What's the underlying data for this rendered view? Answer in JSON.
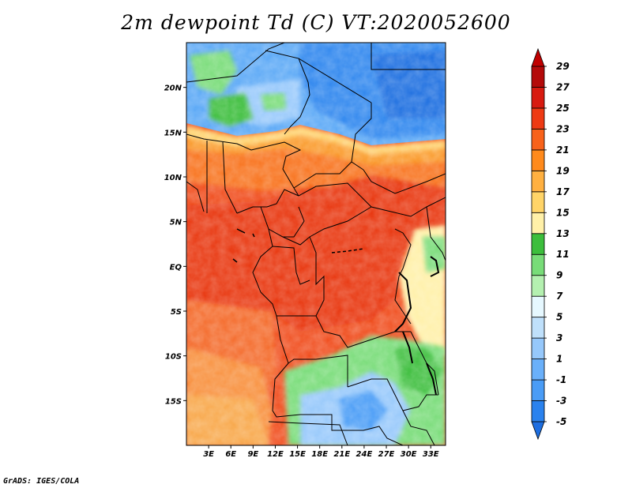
{
  "title": "2m dewpoint Td (C) VT:2020052600",
  "credit": "GrADS: IGES/COLA",
  "map": {
    "lat_labels": [
      {
        "label": "20N",
        "lat": 20
      },
      {
        "label": "15N",
        "lat": 15
      },
      {
        "label": "10N",
        "lat": 10
      },
      {
        "label": "5N",
        "lat": 5
      },
      {
        "label": "EQ",
        "lat": 0
      },
      {
        "label": "5S",
        "lat": -5
      },
      {
        "label": "10S",
        "lat": -10
      },
      {
        "label": "15S",
        "lat": -15
      }
    ],
    "lon_labels": [
      {
        "label": "3E",
        "lon": 3
      },
      {
        "label": "6E",
        "lon": 6
      },
      {
        "label": "9E",
        "lon": 9
      },
      {
        "label": "12E",
        "lon": 12
      },
      {
        "label": "15E",
        "lon": 15
      },
      {
        "label": "18E",
        "lon": 18
      },
      {
        "label": "21E",
        "lon": 21
      },
      {
        "label": "24E",
        "lon": 24
      },
      {
        "label": "27E",
        "lon": 27
      },
      {
        "label": "30E",
        "lon": 30
      },
      {
        "label": "33E",
        "lon": 33
      }
    ],
    "lon_range": [
      0,
      35
    ],
    "lat_range": [
      -20,
      25
    ]
  },
  "colorbar": {
    "levels": [
      "-5",
      "-3",
      "-1",
      "1",
      "3",
      "5",
      "7",
      "9",
      "11",
      "13",
      "15",
      "17",
      "19",
      "21",
      "23",
      "25",
      "27",
      "29"
    ],
    "colors": [
      "#1e6ee0",
      "#2a82ee",
      "#4a9cf6",
      "#6ab0fa",
      "#96c8fb",
      "#bfe0fb",
      "#e6f8ff",
      "#b4f0b0",
      "#78dc78",
      "#3cbe3c",
      "#fff0a8",
      "#ffd468",
      "#ffb040",
      "#ff8a1c",
      "#f8621a",
      "#ee3a14",
      "#d81a10",
      "#b40a0a",
      "#c00000"
    ]
  }
}
